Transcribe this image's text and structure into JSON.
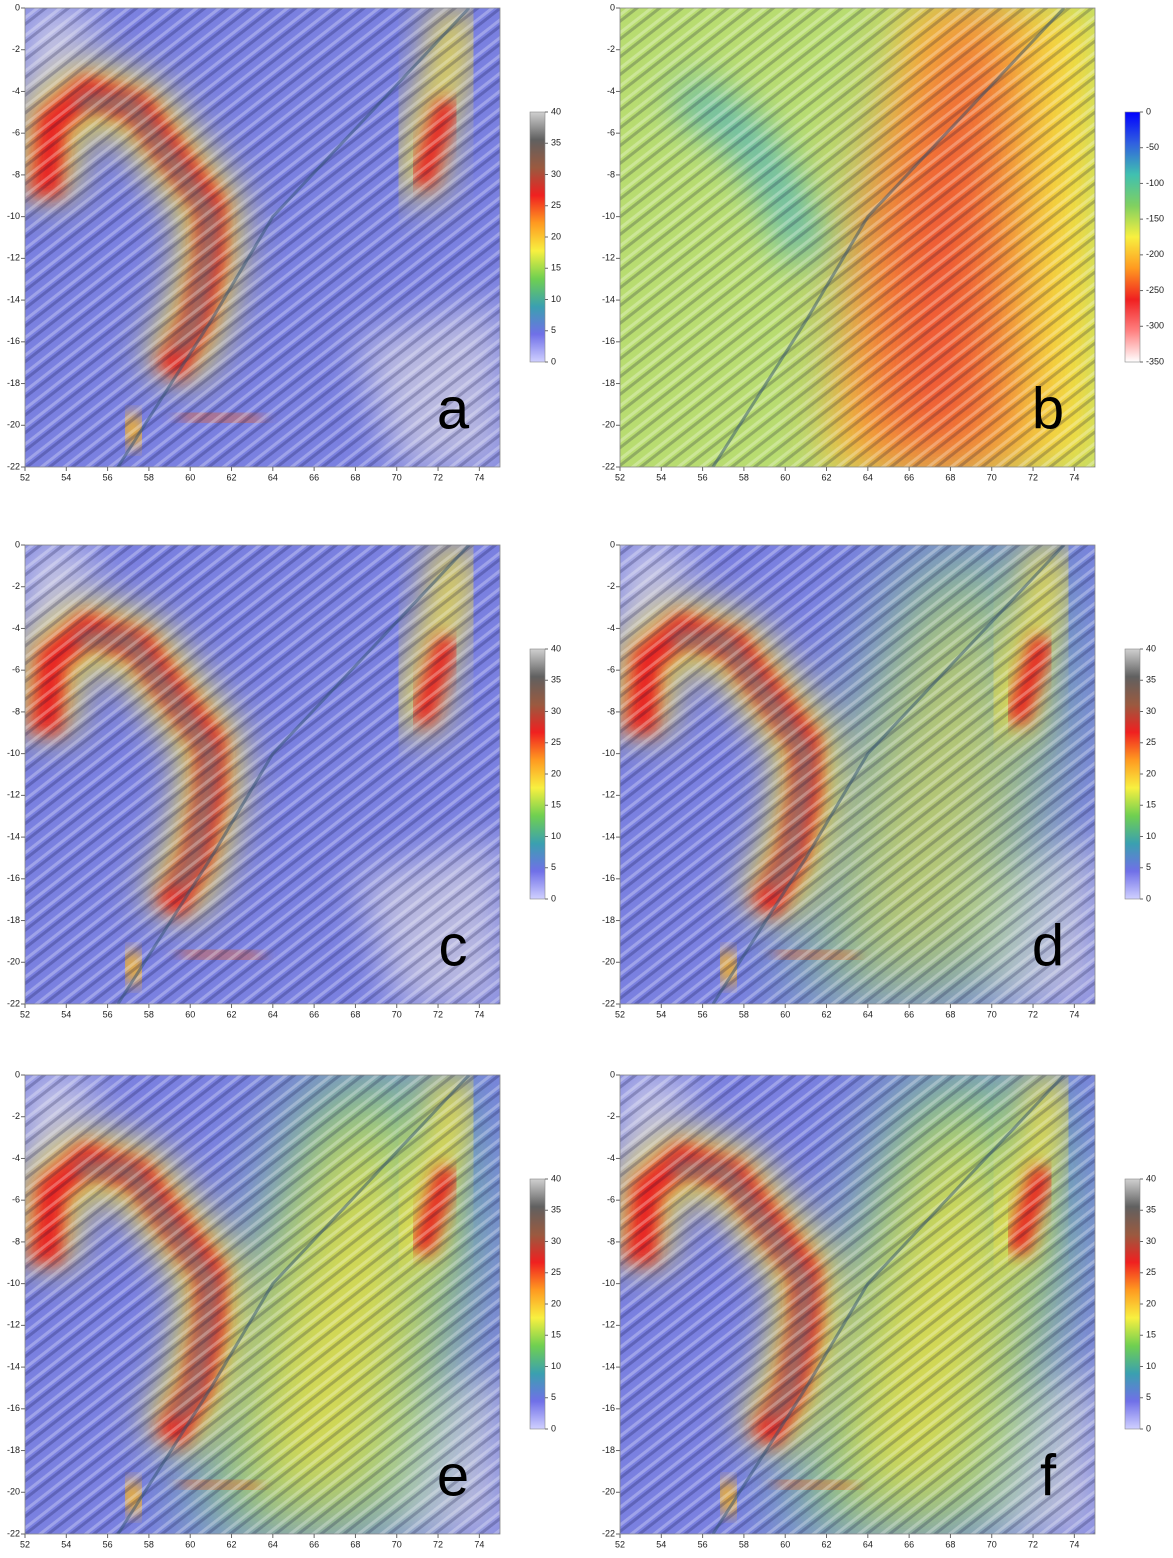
{
  "panels": [
    {
      "label": "a",
      "xlim": [
        52,
        75
      ],
      "ylim": [
        -22,
        0
      ],
      "xticks": [
        52,
        54,
        56,
        58,
        60,
        62,
        64,
        66,
        68,
        70,
        72,
        74
      ],
      "yticks": [
        0,
        -2,
        -4,
        -6,
        -8,
        -10,
        -12,
        -14,
        -16,
        -18,
        -20,
        -22
      ],
      "colorbar": {
        "ticks": [
          0,
          5,
          10,
          15,
          20,
          25,
          30,
          35,
          40
        ],
        "colors": [
          "#d0d0ff",
          "#7070e8",
          "#3aa0b0",
          "#70d050",
          "#f8f040",
          "#ff9a20",
          "#f02020",
          "#9a5a40",
          "#606060",
          "#d0d0d0"
        ]
      }
    },
    {
      "label": "b",
      "xlim": [
        52,
        75
      ],
      "ylim": [
        -22,
        0
      ],
      "xticks": [
        52,
        54,
        56,
        58,
        60,
        62,
        64,
        66,
        68,
        70,
        72,
        74
      ],
      "yticks": [
        0,
        -2,
        -4,
        -6,
        -8,
        -10,
        -12,
        -14,
        -16,
        -18,
        -20,
        -22
      ],
      "colorbar": {
        "ticks": [
          0,
          -50,
          -100,
          -150,
          -200,
          -250,
          -300,
          -350
        ],
        "colors": [
          "#ffffff",
          "#ff8080",
          "#f02020",
          "#ff9a20",
          "#f8f040",
          "#80d060",
          "#40c0b0",
          "#3060e0",
          "#0000ff"
        ]
      }
    },
    {
      "label": "c",
      "xlim": [
        52,
        75
      ],
      "ylim": [
        -22,
        0
      ],
      "xticks": [
        52,
        54,
        56,
        58,
        60,
        62,
        64,
        66,
        68,
        70,
        72,
        74
      ],
      "yticks": [
        0,
        -2,
        -4,
        -6,
        -8,
        -10,
        -12,
        -14,
        -16,
        -18,
        -20,
        -22
      ],
      "colorbar": {
        "ticks": [
          0,
          5,
          10,
          15,
          20,
          25,
          30,
          35,
          40
        ],
        "colors": [
          "#d0d0ff",
          "#7070e8",
          "#3aa0b0",
          "#70d050",
          "#f8f040",
          "#ff9a20",
          "#f02020",
          "#9a5a40",
          "#606060",
          "#d0d0d0"
        ]
      }
    },
    {
      "label": "d",
      "xlim": [
        52,
        75
      ],
      "ylim": [
        -22,
        0
      ],
      "xticks": [
        52,
        54,
        56,
        58,
        60,
        62,
        64,
        66,
        68,
        70,
        72,
        74
      ],
      "yticks": [
        0,
        -2,
        -4,
        -6,
        -8,
        -10,
        -12,
        -14,
        -16,
        -18,
        -20,
        -22
      ],
      "colorbar": {
        "ticks": [
          0,
          5,
          10,
          15,
          20,
          25,
          30,
          35,
          40
        ],
        "colors": [
          "#d0d0ff",
          "#7070e8",
          "#3aa0b0",
          "#70d050",
          "#f8f040",
          "#ff9a20",
          "#f02020",
          "#9a5a40",
          "#606060",
          "#d0d0d0"
        ]
      }
    },
    {
      "label": "e",
      "xlim": [
        52,
        75
      ],
      "ylim": [
        -22,
        0
      ],
      "xticks": [
        52,
        54,
        56,
        58,
        60,
        62,
        64,
        66,
        68,
        70,
        72,
        74
      ],
      "yticks": [
        0,
        -2,
        -4,
        -6,
        -8,
        -10,
        -12,
        -14,
        -16,
        -18,
        -20,
        -22
      ],
      "colorbar": {
        "ticks": [
          0,
          5,
          10,
          15,
          20,
          25,
          30,
          35,
          40
        ],
        "colors": [
          "#d0d0ff",
          "#7070e8",
          "#3aa0b0",
          "#70d050",
          "#f8f040",
          "#ff9a20",
          "#f02020",
          "#9a5a40",
          "#606060",
          "#d0d0d0"
        ]
      }
    },
    {
      "label": "f",
      "xlim": [
        52,
        75
      ],
      "ylim": [
        -22,
        0
      ],
      "xticks": [
        52,
        54,
        56,
        58,
        60,
        62,
        64,
        66,
        68,
        70,
        72,
        74
      ],
      "yticks": [
        0,
        -2,
        -4,
        -6,
        -8,
        -10,
        -12,
        -14,
        -16,
        -18,
        -20,
        -22
      ],
      "colorbar": {
        "ticks": [
          0,
          5,
          10,
          15,
          20,
          25,
          30,
          35,
          40
        ],
        "colors": [
          "#d0d0ff",
          "#7070e8",
          "#3aa0b0",
          "#70d050",
          "#f8f040",
          "#ff9a20",
          "#f02020",
          "#9a5a40",
          "#606060",
          "#d0d0d0"
        ]
      }
    }
  ]
}
